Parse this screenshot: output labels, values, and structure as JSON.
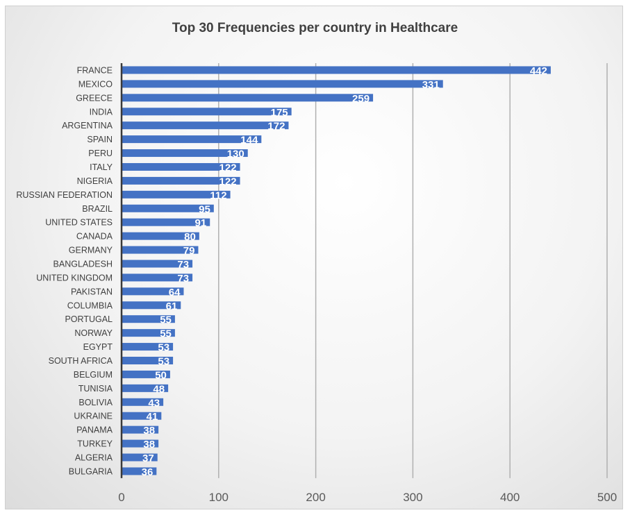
{
  "chart_data": {
    "type": "bar",
    "orientation": "horizontal",
    "title": "Top 30 Frequencies per country in Healthcare",
    "xlabel": "",
    "ylabel": "",
    "xlim": [
      0,
      500
    ],
    "x_ticks": [
      "0",
      "100",
      "200",
      "300",
      "400",
      "500"
    ],
    "grid": "vertical gridlines",
    "legend": "none",
    "bar_color": "#4472C4",
    "categories": [
      "FRANCE",
      "MEXICO",
      "GREECE",
      "INDIA",
      "ARGENTINA",
      "SPAIN",
      "PERU",
      "ITALY",
      "NIGERIA",
      "RUSSIAN FEDERATION",
      "BRAZIL",
      "UNITED STATES",
      "CANADA",
      "GERMANY",
      "BANGLADESH",
      "UNITED KINGDOM",
      "PAKISTAN",
      "COLUMBIA",
      "PORTUGAL",
      "NORWAY",
      "EGYPT",
      "SOUTH AFRICA",
      "BELGIUM",
      "TUNISIA",
      "BOLIVIA",
      "UKRAINE",
      "PANAMA",
      "TURKEY",
      "ALGERIA",
      "BULGARIA"
    ],
    "values": [
      442,
      331,
      259,
      175,
      172,
      144,
      130,
      122,
      122,
      112,
      95,
      91,
      80,
      79,
      73,
      73,
      64,
      61,
      55,
      55,
      53,
      53,
      50,
      48,
      43,
      41,
      38,
      38,
      37,
      36
    ]
  }
}
